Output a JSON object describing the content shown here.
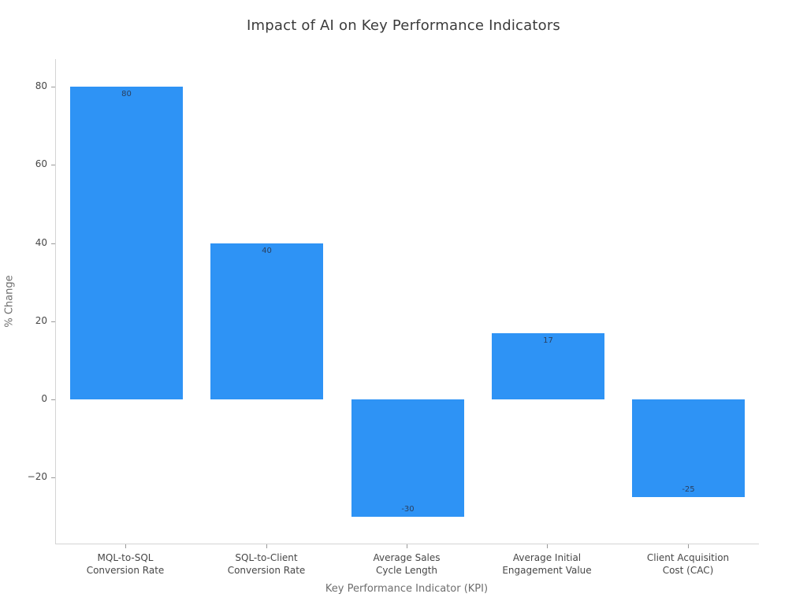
{
  "chart_data": {
    "type": "bar",
    "title": "Impact of AI on Key Performance Indicators",
    "xlabel": "Key Performance Indicator (KPI)",
    "ylabel": "% Change",
    "categories": [
      "MQL-to-SQL\nConversion Rate",
      "SQL-to-Client\nConversion Rate",
      "Average Sales\nCycle Length",
      "Average Initial\nEngagement Value",
      "Client Acquisition\nCost (CAC)"
    ],
    "values": [
      80,
      40,
      -30,
      17,
      -25
    ],
    "bar_labels": [
      "80",
      "40",
      "-30",
      "17",
      "-25"
    ],
    "yticks": [
      {
        "value": -20,
        "label": "−20"
      },
      {
        "value": 0,
        "label": "0"
      },
      {
        "value": 20,
        "label": "20"
      },
      {
        "value": 40,
        "label": "40"
      },
      {
        "value": 60,
        "label": "60"
      },
      {
        "value": 80,
        "label": "80"
      }
    ],
    "ylim": [
      -36.9,
      87.1
    ],
    "grid": false,
    "legend_position": "none",
    "bar_width_frac": 0.8,
    "colors": {
      "bar": "#2e93f5",
      "bar_label": "#2a3f5f",
      "axis_line": "#d4d4d4",
      "tick_mark": "#9a9a9a",
      "tick_label": "#474747",
      "axis_title": "#6e6e6e",
      "title": "#3b3b3b",
      "background": "#ffffff"
    }
  }
}
